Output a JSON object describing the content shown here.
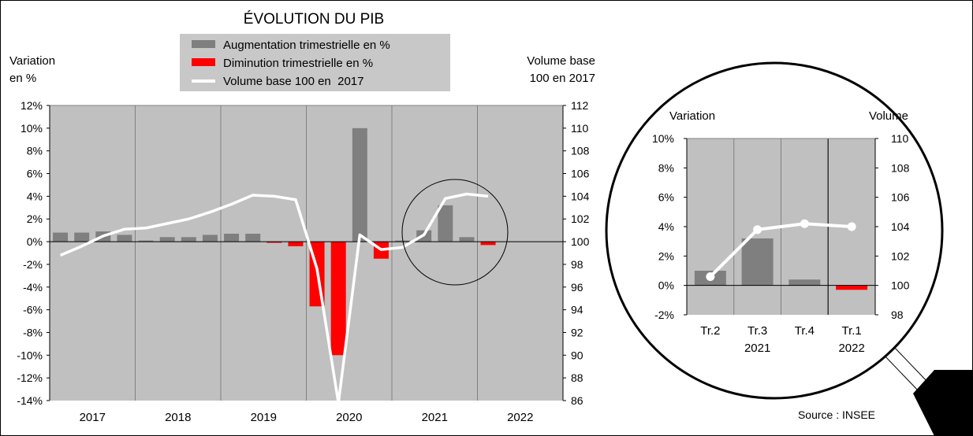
{
  "chart_data": [
    {
      "type": "bar",
      "title": "ÉVOLUTION DU PIB",
      "ylabel_left": [
        "Variation",
        "en %"
      ],
      "ylabel_right": [
        "Volume base",
        "100 en 2017"
      ],
      "legend": {
        "placement": "top",
        "items": [
          {
            "label": "Augmentation trimestrielle en %",
            "color": "#7f7f7f",
            "kind": "bar"
          },
          {
            "label": "Diminution trimestrielle en %",
            "color": "#ff0000",
            "kind": "bar"
          },
          {
            "label": "Volume base 100 en  2017",
            "color": "#ffffff",
            "kind": "line"
          }
        ]
      },
      "years": [
        "2017",
        "2018",
        "2019",
        "2020",
        "2021",
        "2022"
      ],
      "quarters_per_year": 4,
      "y_left": {
        "min": -14,
        "max": 12,
        "step": 2,
        "suffix": "%"
      },
      "y_right": {
        "min": 86,
        "max": 112,
        "step": 2
      },
      "variation_pct": [
        0.8,
        0.8,
        0.9,
        0.6,
        0.1,
        0.4,
        0.4,
        0.6,
        0.7,
        0.7,
        -0.1,
        -0.4,
        -5.7,
        -10.0,
        10.0,
        -1.5,
        0.1,
        1.0,
        3.2,
        0.4,
        -0.3
      ],
      "volume_index": [
        98.8,
        99.6,
        100.5,
        101.1,
        101.2,
        101.6,
        102.0,
        102.6,
        103.3,
        104.1,
        104.0,
        103.7,
        97.6,
        85.8,
        100.6,
        99.3,
        99.5,
        100.6,
        103.8,
        104.2,
        104.0
      ],
      "grid": true,
      "annotation": "magnifier circle around 2021 Q2 – 2022 Q1"
    },
    {
      "type": "bar",
      "title": "",
      "ylabel_left": "Variation",
      "ylabel_right": "Volume",
      "categories": [
        "Tr.2",
        "Tr.3",
        "Tr.4",
        "Tr.1"
      ],
      "category_years": [
        "",
        "2021",
        "",
        "2022"
      ],
      "y_left": {
        "min": -2,
        "max": 10,
        "step": 2,
        "suffix": "%"
      },
      "y_right": {
        "min": 98,
        "max": 110,
        "step": 2
      },
      "variation_pct": [
        1.0,
        3.2,
        0.4,
        -0.3
      ],
      "volume_index": [
        100.6,
        103.8,
        104.2,
        104.0
      ]
    }
  ],
  "source": "Source : INSEE",
  "colors": {
    "plot_bg": "#c0c0c0",
    "legend_bg": "#c8c8c8",
    "positive": "#7f7f7f",
    "negative": "#ff0000",
    "line": "#ffffff",
    "grid": "#808080"
  }
}
